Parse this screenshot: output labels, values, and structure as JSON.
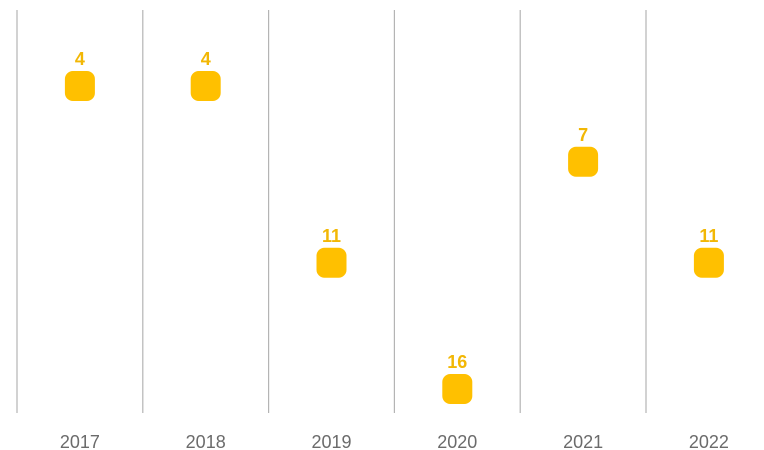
{
  "chart_data": {
    "type": "scatter",
    "title": "",
    "xlabel": "",
    "ylabel": "",
    "categories": [
      "2017",
      "2018",
      "2019",
      "2020",
      "2021",
      "2022"
    ],
    "values": [
      4,
      4,
      11,
      16,
      7,
      11
    ],
    "y_axis_inverted": true,
    "ylim": [
      0,
      17
    ],
    "grid": "vertical",
    "legend": "none",
    "marker_shape": "rounded-square",
    "colors": {
      "marker": "#FFC000",
      "label": "#F2B705",
      "tick": "#6B6B6B",
      "grid": "#B4B4B4"
    }
  }
}
